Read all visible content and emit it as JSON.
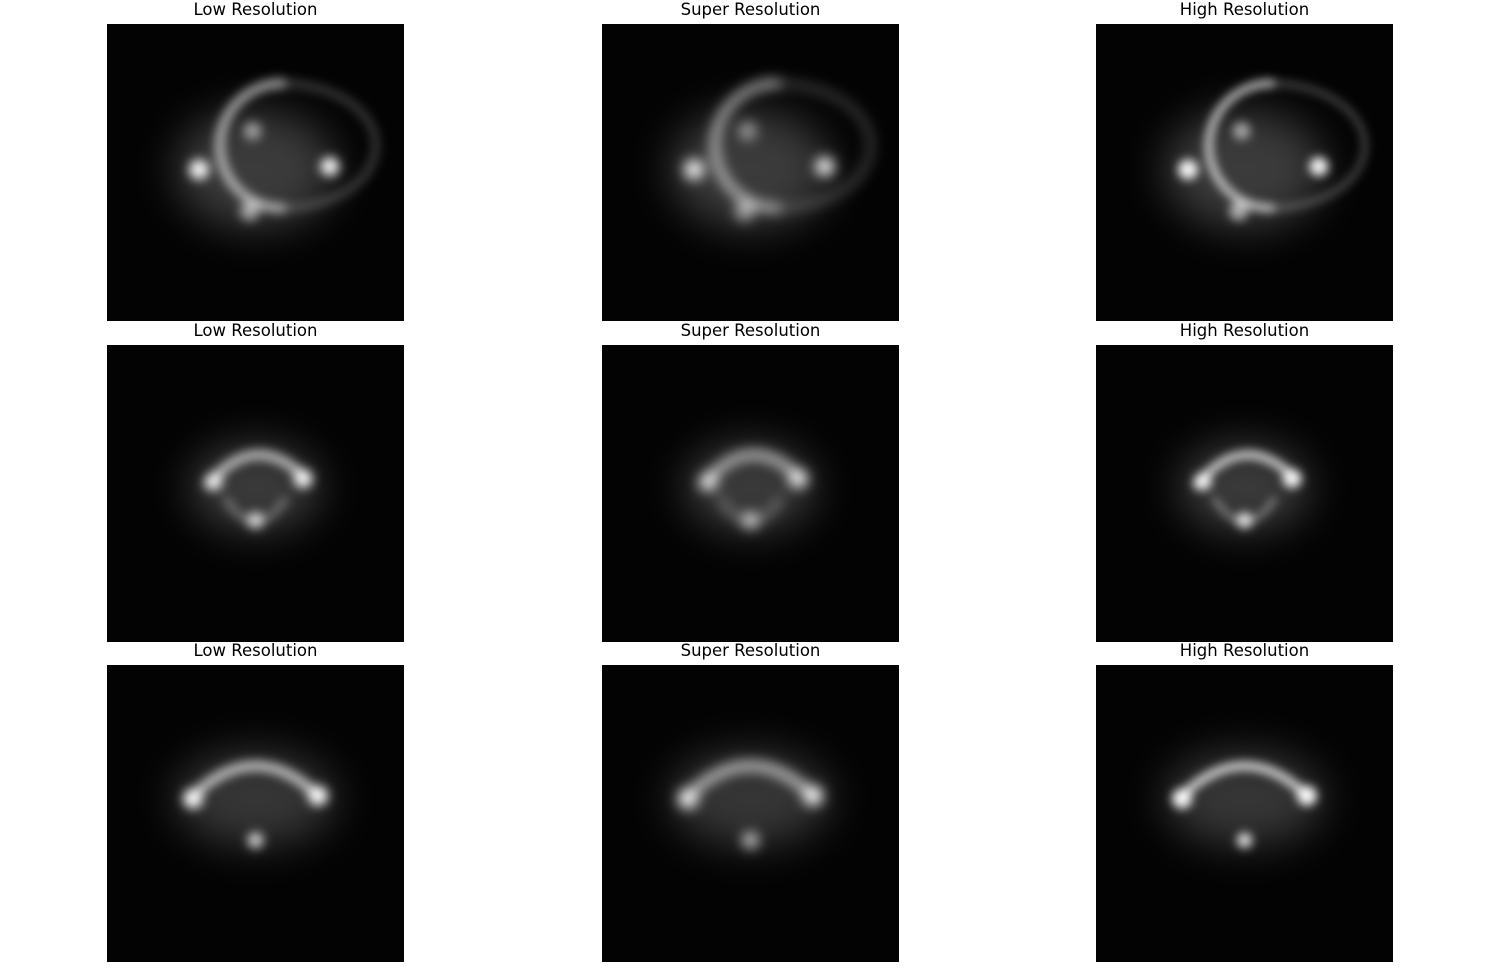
{
  "figure": {
    "column_titles": [
      "Low Resolution",
      "Super Resolution",
      "High Resolution"
    ],
    "background_color": "#ffffff",
    "image_background_color": "#030303",
    "image_glow_color": "#ffffff",
    "rows": [
      {
        "panels": [
          {
            "title": "Low Resolution",
            "kind": "low",
            "shape": "ring-with-right-knot"
          },
          {
            "title": "Super Resolution",
            "kind": "super",
            "shape": "ring-with-right-knot"
          },
          {
            "title": "High Resolution",
            "kind": "high",
            "shape": "ring-with-right-knot"
          }
        ]
      },
      {
        "panels": [
          {
            "title": "Low Resolution",
            "kind": "low",
            "shape": "arc-with-bottom-knot"
          },
          {
            "title": "Super Resolution",
            "kind": "super",
            "shape": "arc-with-bottom-knot"
          },
          {
            "title": "High Resolution",
            "kind": "high",
            "shape": "arc-with-bottom-knot"
          }
        ]
      },
      {
        "panels": [
          {
            "title": "Low Resolution",
            "kind": "low",
            "shape": "wide-arc-with-bottom-dot"
          },
          {
            "title": "Super Resolution",
            "kind": "super",
            "shape": "wide-arc-with-bottom-dot"
          },
          {
            "title": "High Resolution",
            "kind": "high",
            "shape": "wide-arc-with-bottom-dot"
          }
        ]
      }
    ]
  }
}
